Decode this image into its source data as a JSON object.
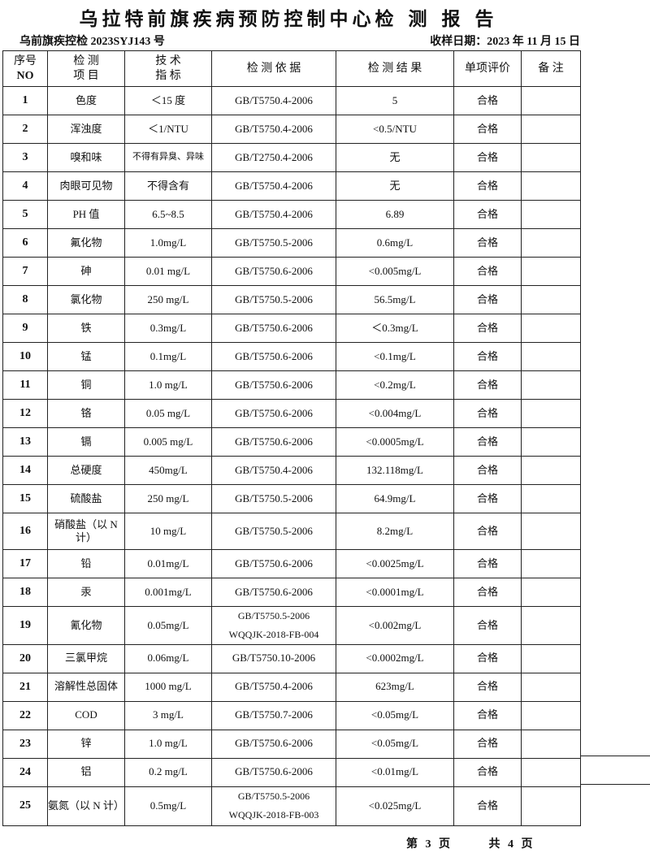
{
  "header": {
    "title": "乌拉特前旗疾病预防控制中心检 测 报 告",
    "doc_no": "乌前旗疾控检 2023SYJ143 号",
    "sample_date": "收样日期：2023 年 11 月 15 日"
  },
  "table": {
    "columns": [
      {
        "line1": "序号",
        "line2": "NO"
      },
      {
        "line1": "检  测",
        "line2": "项  目"
      },
      {
        "line1": "技  术",
        "line2": "指  标"
      },
      {
        "line1": "检 测 依 据",
        "line2": ""
      },
      {
        "line1": "检 测 结 果",
        "line2": ""
      },
      {
        "line1": "单项评价",
        "line2": ""
      },
      {
        "line1": "备 注",
        "line2": ""
      }
    ],
    "rows": [
      {
        "no": "1",
        "item": "色度",
        "limit": "＜15 度",
        "method": "GB/T5750.4-2006",
        "method2": "",
        "result": "5",
        "eval": "合格",
        "note": ""
      },
      {
        "no": "2",
        "item": "浑浊度",
        "limit": "＜1/NTU",
        "method": "GB/T5750.4-2006",
        "method2": "",
        "result": "<0.5/NTU",
        "eval": "合格",
        "note": ""
      },
      {
        "no": "3",
        "item": "嗅和味",
        "limit": "不得有异臭、异味",
        "method": "GB/T2750.4-2006",
        "method2": "",
        "result": "无",
        "eval": "合格",
        "note": ""
      },
      {
        "no": "4",
        "item": "肉眼可见物",
        "limit": "不得含有",
        "method": "GB/T5750.4-2006",
        "method2": "",
        "result": "无",
        "eval": "合格",
        "note": ""
      },
      {
        "no": "5",
        "item": "PH 值",
        "limit": "6.5~8.5",
        "method": "GB/T5750.4-2006",
        "method2": "",
        "result": "6.89",
        "eval": "合格",
        "note": ""
      },
      {
        "no": "6",
        "item": "氟化物",
        "limit": "1.0mg/L",
        "method": "GB/T5750.5-2006",
        "method2": "",
        "result": "0.6mg/L",
        "eval": "合格",
        "note": ""
      },
      {
        "no": "7",
        "item": "砷",
        "limit": "0.01 mg/L",
        "method": "GB/T5750.6-2006",
        "method2": "",
        "result": "<0.005mg/L",
        "eval": "合格",
        "note": ""
      },
      {
        "no": "8",
        "item": "氯化物",
        "limit": "250 mg/L",
        "method": "GB/T5750.5-2006",
        "method2": "",
        "result": "56.5mg/L",
        "eval": "合格",
        "note": ""
      },
      {
        "no": "9",
        "item": "铁",
        "limit": "0.3mg/L",
        "method": "GB/T5750.6-2006",
        "method2": "",
        "result": "＜0.3mg/L",
        "eval": "合格",
        "note": ""
      },
      {
        "no": "10",
        "item": "锰",
        "limit": "0.1mg/L",
        "method": "GB/T5750.6-2006",
        "method2": "",
        "result": "<0.1mg/L",
        "eval": "合格",
        "note": ""
      },
      {
        "no": "11",
        "item": "铜",
        "limit": "1.0 mg/L",
        "method": "GB/T5750.6-2006",
        "method2": "",
        "result": "<0.2mg/L",
        "eval": "合格",
        "note": ""
      },
      {
        "no": "12",
        "item": "铬",
        "limit": "0.05 mg/L",
        "method": "GB/T5750.6-2006",
        "method2": "",
        "result": "<0.004mg/L",
        "eval": "合格",
        "note": ""
      },
      {
        "no": "13",
        "item": "镉",
        "limit": "0.005 mg/L",
        "method": "GB/T5750.6-2006",
        "method2": "",
        "result": "<0.0005mg/L",
        "eval": "合格",
        "note": ""
      },
      {
        "no": "14",
        "item": "总硬度",
        "limit": "450mg/L",
        "method": "GB/T5750.4-2006",
        "method2": "",
        "result": "132.118mg/L",
        "eval": "合格",
        "note": ""
      },
      {
        "no": "15",
        "item": "硫酸盐",
        "limit": "250 mg/L",
        "method": "GB/T5750.5-2006",
        "method2": "",
        "result": "64.9mg/L",
        "eval": "合格",
        "note": ""
      },
      {
        "no": "16",
        "item": "硝酸盐（以 N 计）",
        "limit": "10 mg/L",
        "method": "GB/T5750.5-2006",
        "method2": "",
        "result": "8.2mg/L",
        "eval": "合格",
        "note": ""
      },
      {
        "no": "17",
        "item": "铅",
        "limit": "0.01mg/L",
        "method": "GB/T5750.6-2006",
        "method2": "",
        "result": "<0.0025mg/L",
        "eval": "合格",
        "note": ""
      },
      {
        "no": "18",
        "item": "汞",
        "limit": "0.001mg/L",
        "method": "GB/T5750.6-2006",
        "method2": "",
        "result": "<0.0001mg/L",
        "eval": "合格",
        "note": ""
      },
      {
        "no": "19",
        "item": "氰化物",
        "limit": "0.05mg/L",
        "method": "GB/T5750.5-2006",
        "method2": "WQQJK-2018-FB-004",
        "result": "<0.002mg/L",
        "eval": "合格",
        "note": ""
      },
      {
        "no": "20",
        "item": "三氯甲烷",
        "limit": "0.06mg/L",
        "method": "GB/T5750.10-2006",
        "method2": "",
        "result": "<0.0002mg/L",
        "eval": "合格",
        "note": ""
      },
      {
        "no": "21",
        "item": "溶解性总固体",
        "limit": "1000 mg/L",
        "method": "GB/T5750.4-2006",
        "method2": "",
        "result": "623mg/L",
        "eval": "合格",
        "note": ""
      },
      {
        "no": "22",
        "item": "COD",
        "limit": "3 mg/L",
        "method": "GB/T5750.7-2006",
        "method2": "",
        "result": "<0.05mg/L",
        "eval": "合格",
        "note": ""
      },
      {
        "no": "23",
        "item": "锌",
        "limit": "1.0 mg/L",
        "method": "GB/T5750.6-2006",
        "method2": "",
        "result": "<0.05mg/L",
        "eval": "合格",
        "note": ""
      },
      {
        "no": "24",
        "item": "铝",
        "limit": "0.2 mg/L",
        "method": "GB/T5750.6-2006",
        "method2": "",
        "result": "<0.01mg/L",
        "eval": "合格",
        "note": ""
      },
      {
        "no": "25",
        "item": "氨氮（以 N 计）",
        "limit": "0.5mg/L",
        "method": "GB/T5750.5-2006",
        "method2": "WQQJK-2018-FB-003",
        "result": "<0.025mg/L",
        "eval": "合格",
        "note": ""
      }
    ]
  },
  "footer": {
    "page": "第 3 页",
    "total": "共 4 页"
  }
}
